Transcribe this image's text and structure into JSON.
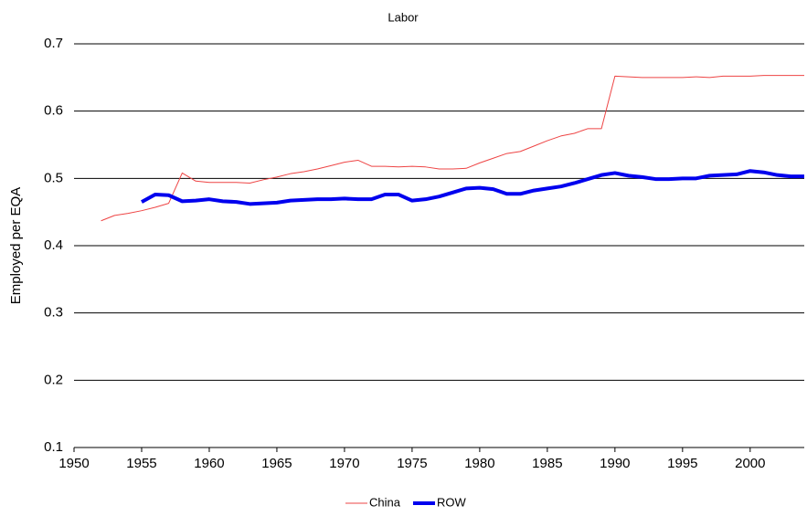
{
  "chart_data": {
    "type": "line",
    "title": "Labor",
    "ylabel": "Employed per EQA",
    "x": [
      1952,
      1953,
      1954,
      1955,
      1956,
      1957,
      1958,
      1959,
      1960,
      1961,
      1962,
      1963,
      1964,
      1965,
      1966,
      1967,
      1968,
      1969,
      1970,
      1971,
      1972,
      1973,
      1974,
      1975,
      1976,
      1977,
      1978,
      1979,
      1980,
      1981,
      1982,
      1983,
      1984,
      1985,
      1986,
      1987,
      1988,
      1989,
      1990,
      1991,
      1992,
      1993,
      1994,
      1995,
      1996,
      1997,
      1998,
      1999,
      2000,
      2001,
      2002,
      2003,
      2004
    ],
    "series": [
      {
        "name": "China",
        "color": "#ee4444",
        "width": 1,
        "values": [
          0.437,
          0.445,
          0.448,
          0.452,
          0.457,
          0.463,
          0.508,
          0.496,
          0.494,
          0.494,
          0.494,
          0.493,
          0.498,
          0.502,
          0.507,
          0.51,
          0.514,
          0.519,
          0.524,
          0.527,
          0.518,
          0.518,
          0.517,
          0.518,
          0.517,
          0.514,
          0.514,
          0.515,
          0.523,
          0.53,
          0.537,
          0.54,
          0.548,
          0.556,
          0.563,
          0.567,
          0.574,
          0.574,
          0.652,
          0.651,
          0.65,
          0.65,
          0.65,
          0.65,
          0.651,
          0.65,
          0.652,
          0.652,
          0.652,
          0.653,
          0.653,
          0.653,
          0.653
        ]
      },
      {
        "name": "ROW",
        "color": "#0000ee",
        "width": 4,
        "values": [
          null,
          null,
          null,
          0.465,
          0.476,
          0.475,
          0.466,
          0.467,
          0.469,
          0.466,
          0.465,
          0.462,
          0.463,
          0.464,
          0.467,
          0.468,
          0.469,
          0.469,
          0.47,
          0.469,
          0.469,
          0.476,
          0.476,
          0.467,
          0.469,
          0.473,
          0.479,
          0.485,
          0.486,
          0.484,
          0.477,
          0.477,
          0.482,
          0.485,
          0.488,
          0.493,
          0.499,
          0.505,
          0.508,
          0.504,
          0.502,
          0.499,
          0.499,
          0.5,
          0.5,
          0.504,
          0.505,
          0.506,
          0.511,
          0.509,
          0.505,
          0.503,
          0.503
        ]
      }
    ],
    "xlim": [
      1950,
      2004
    ],
    "xticks": [
      1950,
      1955,
      1960,
      1965,
      1970,
      1975,
      1980,
      1985,
      1990,
      1995,
      2000
    ],
    "ylim": [
      0.1,
      0.7
    ],
    "yticks": [
      0.1,
      0.2,
      0.3,
      0.4,
      0.5,
      0.6,
      0.7
    ],
    "grid": true,
    "legend": "bottom"
  }
}
